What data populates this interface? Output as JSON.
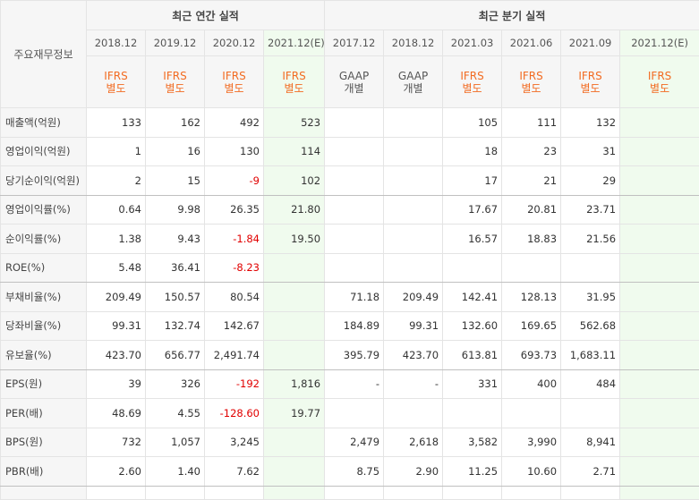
{
  "header": {
    "row_label": "주요재무정보",
    "annual_group": "최근 연간 실적",
    "quarter_group": "최근 분기 실적"
  },
  "columns": [
    {
      "date": "2018.12",
      "acct1": "IFRS",
      "acct2": "별도",
      "gaap": false,
      "est": false
    },
    {
      "date": "2019.12",
      "acct1": "IFRS",
      "acct2": "별도",
      "gaap": false,
      "est": false
    },
    {
      "date": "2020.12",
      "acct1": "IFRS",
      "acct2": "별도",
      "gaap": false,
      "est": false
    },
    {
      "date": "2021.12(E)",
      "acct1": "IFRS",
      "acct2": "별도",
      "gaap": false,
      "est": true
    },
    {
      "date": "2017.12",
      "acct1": "GAAP",
      "acct2": "개별",
      "gaap": true,
      "est": false
    },
    {
      "date": "2018.12",
      "acct1": "GAAP",
      "acct2": "개별",
      "gaap": true,
      "est": false
    },
    {
      "date": "2021.03",
      "acct1": "IFRS",
      "acct2": "별도",
      "gaap": false,
      "est": false
    },
    {
      "date": "2021.06",
      "acct1": "IFRS",
      "acct2": "별도",
      "gaap": false,
      "est": false
    },
    {
      "date": "2021.09",
      "acct1": "IFRS",
      "acct2": "별도",
      "gaap": false,
      "est": false
    },
    {
      "date": "2021.12(E)",
      "acct1": "IFRS",
      "acct2": "별도",
      "gaap": false,
      "est": true
    }
  ],
  "rows": [
    {
      "label": "매출액(억원)",
      "values": [
        "133",
        "162",
        "492",
        "523",
        "",
        "",
        "105",
        "111",
        "132",
        ""
      ]
    },
    {
      "label": "영업이익(억원)",
      "values": [
        "1",
        "16",
        "130",
        "114",
        "",
        "",
        "18",
        "23",
        "31",
        ""
      ]
    },
    {
      "label": "당기순이익(억원)",
      "values": [
        "2",
        "15",
        "-9",
        "102",
        "",
        "",
        "17",
        "21",
        "29",
        ""
      ],
      "section_end": true
    },
    {
      "label": "영업이익률(%)",
      "values": [
        "0.64",
        "9.98",
        "26.35",
        "21.80",
        "",
        "",
        "17.67",
        "20.81",
        "23.71",
        ""
      ]
    },
    {
      "label": "순이익률(%)",
      "values": [
        "1.38",
        "9.43",
        "-1.84",
        "19.50",
        "",
        "",
        "16.57",
        "18.83",
        "21.56",
        ""
      ]
    },
    {
      "label": "ROE(%)",
      "values": [
        "5.48",
        "36.41",
        "-8.23",
        "",
        "",
        "",
        "",
        "",
        "",
        ""
      ],
      "section_end": true
    },
    {
      "label": "부채비율(%)",
      "values": [
        "209.49",
        "150.57",
        "80.54",
        "",
        "71.18",
        "209.49",
        "142.41",
        "128.13",
        "31.95",
        ""
      ]
    },
    {
      "label": "당좌비율(%)",
      "values": [
        "99.31",
        "132.74",
        "142.67",
        "",
        "184.89",
        "99.31",
        "132.60",
        "169.65",
        "562.68",
        ""
      ]
    },
    {
      "label": "유보율(%)",
      "values": [
        "423.70",
        "656.77",
        "2,491.74",
        "",
        "395.79",
        "423.70",
        "613.81",
        "693.73",
        "1,683.11",
        ""
      ],
      "section_end": true
    },
    {
      "label": "EPS(원)",
      "values": [
        "39",
        "326",
        "-192",
        "1,816",
        "-",
        "-",
        "331",
        "400",
        "484",
        ""
      ]
    },
    {
      "label": "PER(배)",
      "values": [
        "48.69",
        "4.55",
        "-128.60",
        "19.77",
        "",
        "",
        "",
        "",
        "",
        ""
      ]
    },
    {
      "label": "BPS(원)",
      "values": [
        "732",
        "1,057",
        "3,245",
        "",
        "2,479",
        "2,618",
        "3,582",
        "3,990",
        "8,941",
        ""
      ]
    },
    {
      "label": "PBR(배)",
      "values": [
        "2.60",
        "1.40",
        "7.62",
        "",
        "8.75",
        "2.90",
        "11.25",
        "10.60",
        "2.71",
        ""
      ],
      "section_end": true
    }
  ]
}
